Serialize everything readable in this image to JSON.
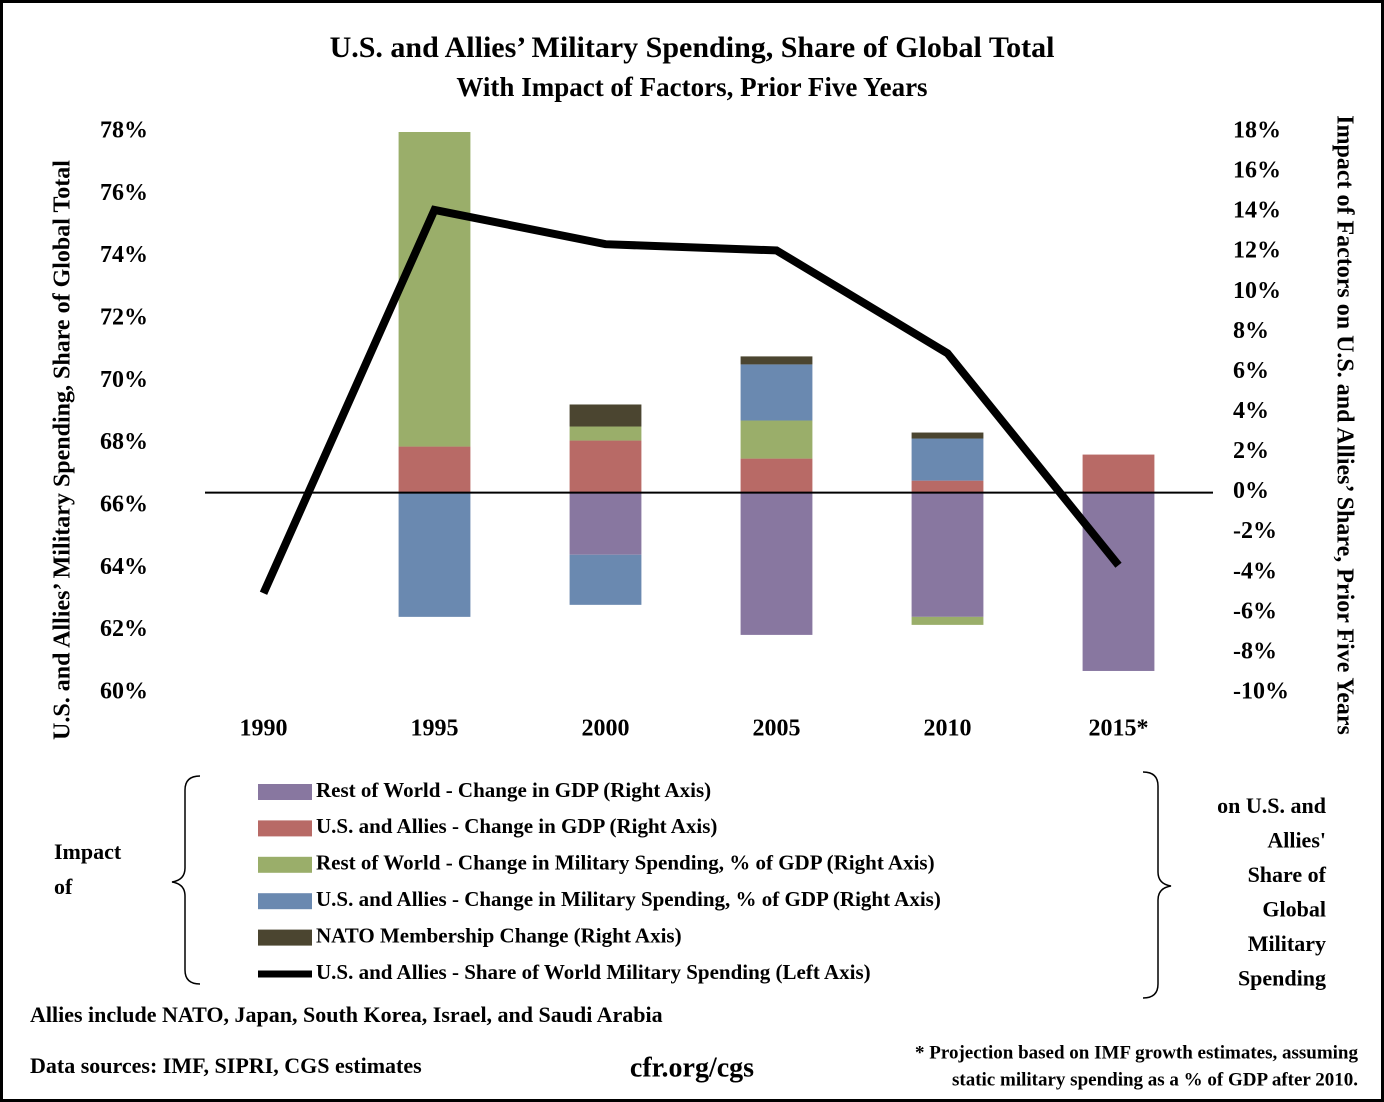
{
  "chart_data": {
    "type": "bar",
    "title": "U.S. and Allies’ Military Spending, Share of Global Total",
    "subtitle": "With Impact of Factors, Prior Five Years",
    "y_label": "U.S. and Allies’ Military Spending, Share of Global Total",
    "y2_label": "Impact of Factors on U.S. and Allies’ Share, Prior Five Years",
    "categories": [
      "1990",
      "1995",
      "2000",
      "2005",
      "2010",
      "2015*"
    ],
    "stacked": true,
    "series": [
      {
        "name": "Rest of World - Change in GDP (Right Axis)",
        "color": "#8877a0",
        "axis": "y2",
        "values": [
          null,
          null,
          -3.1,
          -7.1,
          -6.2,
          -8.9
        ]
      },
      {
        "name": "U.S. and Allies - Change in GDP (Right Axis)",
        "color": "#b86a66",
        "axis": "y2",
        "values": [
          null,
          2.3,
          2.6,
          1.7,
          0.6,
          1.9
        ]
      },
      {
        "name": "Rest of World - Change in Military Spending, % of GDP (Right Axis)",
        "color": "#9aae6a",
        "axis": "y2",
        "values": [
          null,
          15.7,
          0.7,
          1.9,
          -0.4,
          null
        ]
      },
      {
        "name": "U.S. and Allies - Change in Military Spending, % of GDP (Right Axis)",
        "color": "#6a89b0",
        "axis": "y2",
        "values": [
          null,
          -6.2,
          -2.5,
          2.8,
          2.1,
          null
        ]
      },
      {
        "name": "NATO Membership Change (Right Axis)",
        "color": "#4b4530",
        "axis": "y2",
        "values": [
          null,
          null,
          1.1,
          0.4,
          0.3,
          null
        ]
      },
      {
        "name": "U.S. and Allies - Share of World Military Spending (Left Axis)",
        "color": "#000000",
        "axis": "y",
        "type": "line",
        "values": [
          63.2,
          75.5,
          74.4,
          74.2,
          70.9,
          64.1
        ]
      }
    ],
    "ylim": [
      60,
      78
    ],
    "yticks": [
      {
        "value": 60,
        "label": "60%"
      },
      {
        "value": 62,
        "label": "62%"
      },
      {
        "value": 64,
        "label": "64%"
      },
      {
        "value": 66,
        "label": "66%"
      },
      {
        "value": 68,
        "label": "68%"
      },
      {
        "value": 70,
        "label": "70%"
      },
      {
        "value": 72,
        "label": "72%"
      },
      {
        "value": 74,
        "label": "74%"
      },
      {
        "value": 76,
        "label": "76%"
      },
      {
        "value": 78,
        "label": "78%"
      }
    ],
    "y2lim": [
      -10,
      18
    ],
    "y2ticks": [
      {
        "value": -10,
        "label": "-10%"
      },
      {
        "value": -8,
        "label": "-8%"
      },
      {
        "value": -6,
        "label": "-6%"
      },
      {
        "value": -4,
        "label": "-4%"
      },
      {
        "value": -2,
        "label": "-2%"
      },
      {
        "value": 0,
        "label": "0%"
      },
      {
        "value": 2,
        "label": "2%"
      },
      {
        "value": 4,
        "label": "4%"
      },
      {
        "value": 6,
        "label": "6%"
      },
      {
        "value": 8,
        "label": "8%"
      },
      {
        "value": 10,
        "label": "10%"
      },
      {
        "value": 12,
        "label": "12%"
      },
      {
        "value": 14,
        "label": "14%"
      },
      {
        "value": 16,
        "label": "16%"
      },
      {
        "value": 18,
        "label": "18%"
      }
    ],
    "annotations": {
      "legend_left": [
        "Impact",
        "of"
      ],
      "legend_right": [
        "on U.S.  and",
        "Allies'",
        "Share of",
        "Global",
        "Military",
        "Spending"
      ],
      "allies_note": "Allies include NATO, Japan, South Korea, Israel, and Saudi Arabia",
      "sources": "Data sources: IMF, SIPRI, CGS estimates",
      "site": "cfr.org/cgs",
      "footnote": [
        "* Projection based on IMF growth estimates, assuming",
        "static military spending as a % of GDP after 2010."
      ]
    }
  }
}
